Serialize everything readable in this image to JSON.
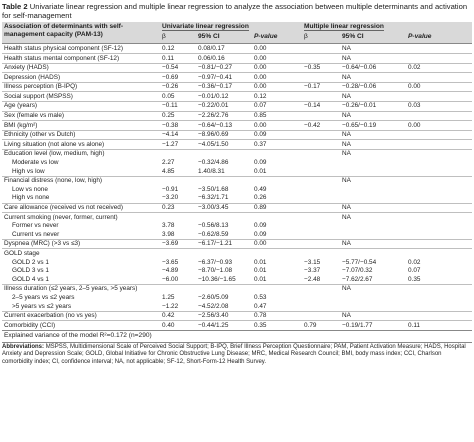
{
  "caption": {
    "label": "Table 2",
    "text": "Univariate linear regression and multiple linear regression to analyze the association between multiple determinants and activation for self-management"
  },
  "header": {
    "determinants": "Association of determinants with self-management capacity (PAM-13)",
    "univariate": "Univariate linear regression",
    "multiple": "Multiple linear regression",
    "beta": "β",
    "ci": "95% CI",
    "pvalue": "P-value"
  },
  "rows": [
    {
      "label": "Health status physical component (SF-12)",
      "indent": false,
      "sep": true,
      "u_beta": "0.12",
      "u_ci": "0.08/0.17",
      "u_p": "0.00",
      "m_beta": "",
      "m_ci": "NA",
      "m_p": ""
    },
    {
      "label": "Health status mental component (SF-12)",
      "indent": false,
      "sep": true,
      "u_beta": "0.11",
      "u_ci": "0.06/0.16",
      "u_p": "0.00",
      "m_beta": "",
      "m_ci": "NA",
      "m_p": ""
    },
    {
      "label": "Anxiety (HADS)",
      "indent": false,
      "sep": true,
      "u_beta": "−0.54",
      "u_ci": "−0.81/−0.27",
      "u_p": "0.00",
      "m_beta": "−0.35",
      "m_ci": "−0.64/−0.06",
      "m_p": "0.02"
    },
    {
      "label": "Depression (HADS)",
      "indent": false,
      "sep": true,
      "u_beta": "−0.69",
      "u_ci": "−0.97/−0.41",
      "u_p": "0.00",
      "m_beta": "",
      "m_ci": "NA",
      "m_p": ""
    },
    {
      "label": "Illness perception (B-IPQ)",
      "indent": false,
      "sep": true,
      "u_beta": "−0.26",
      "u_ci": "−0.36/−0.17",
      "u_p": "0.00",
      "m_beta": "−0.17",
      "m_ci": "−0.28/−0.06",
      "m_p": "0.00"
    },
    {
      "label": "Social support (MSPSS)",
      "indent": false,
      "sep": true,
      "u_beta": "0.05",
      "u_ci": "−0.01/0.12",
      "u_p": "0.12",
      "m_beta": "",
      "m_ci": "NA",
      "m_p": ""
    },
    {
      "label": "Age (years)",
      "indent": false,
      "sep": true,
      "u_beta": "−0.11",
      "u_ci": "−0.22/0.01",
      "u_p": "0.07",
      "m_beta": "−0.14",
      "m_ci": "−0.26/−0.01",
      "m_p": "0.03"
    },
    {
      "label": "Sex (female vs male)",
      "indent": false,
      "sep": true,
      "u_beta": "0.25",
      "u_ci": "−2.26/2.76",
      "u_p": "0.85",
      "m_beta": "",
      "m_ci": "NA",
      "m_p": ""
    },
    {
      "label": "BMI (kg/m²)",
      "indent": false,
      "sep": true,
      "u_beta": "−0.38",
      "u_ci": "−0.64/−0.13",
      "u_p": "0.00",
      "m_beta": "−0.42",
      "m_ci": "−0.65/−0.19",
      "m_p": "0.00"
    },
    {
      "label": "Ethnicity (other vs Dutch)",
      "indent": false,
      "sep": true,
      "u_beta": "−4.14",
      "u_ci": "−8.96/0.69",
      "u_p": "0.09",
      "m_beta": "",
      "m_ci": "NA",
      "m_p": ""
    },
    {
      "label": "Living situation (not alone vs alone)",
      "indent": false,
      "sep": true,
      "u_beta": "−1.27",
      "u_ci": "−4.05/1.50",
      "u_p": "0.37",
      "m_beta": "",
      "m_ci": "NA",
      "m_p": ""
    },
    {
      "label": "Education level (low, medium, high)",
      "indent": false,
      "sep": true,
      "u_beta": "",
      "u_ci": "",
      "u_p": "",
      "m_beta": "",
      "m_ci": "NA",
      "m_p": ""
    },
    {
      "label": "Moderate vs low",
      "indent": true,
      "sep": false,
      "u_beta": "2.27",
      "u_ci": "−0.32/4.86",
      "u_p": "0.09",
      "m_beta": "",
      "m_ci": "",
      "m_p": ""
    },
    {
      "label": "High vs low",
      "indent": true,
      "sep": false,
      "u_beta": "4.85",
      "u_ci": "1.40/8.31",
      "u_p": "0.01",
      "m_beta": "",
      "m_ci": "",
      "m_p": ""
    },
    {
      "label": "Financial distress (none, low, high)",
      "indent": false,
      "sep": true,
      "u_beta": "",
      "u_ci": "",
      "u_p": "",
      "m_beta": "",
      "m_ci": "NA",
      "m_p": ""
    },
    {
      "label": "Low vs none",
      "indent": true,
      "sep": false,
      "u_beta": "−0.91",
      "u_ci": "−3.50/1.68",
      "u_p": "0.49",
      "m_beta": "",
      "m_ci": "",
      "m_p": ""
    },
    {
      "label": "High vs none",
      "indent": true,
      "sep": false,
      "u_beta": "−3.20",
      "u_ci": "−6.32/1.71",
      "u_p": "0.26",
      "m_beta": "",
      "m_ci": "",
      "m_p": ""
    },
    {
      "label": "Care allowance (received vs not received)",
      "indent": false,
      "sep": true,
      "u_beta": "0.23",
      "u_ci": "−3.00/3.45",
      "u_p": "0.89",
      "m_beta": "",
      "m_ci": "NA",
      "m_p": ""
    },
    {
      "label": "Current smoking (never, former, current)",
      "indent": false,
      "sep": true,
      "u_beta": "",
      "u_ci": "",
      "u_p": "",
      "m_beta": "",
      "m_ci": "NA",
      "m_p": ""
    },
    {
      "label": "Former vs never",
      "indent": true,
      "sep": false,
      "u_beta": "3.78",
      "u_ci": "−0.56/8.13",
      "u_p": "0.09",
      "m_beta": "",
      "m_ci": "",
      "m_p": ""
    },
    {
      "label": "Current vs never",
      "indent": true,
      "sep": false,
      "u_beta": "3.98",
      "u_ci": "−0.62/8.59",
      "u_p": "0.09",
      "m_beta": "",
      "m_ci": "",
      "m_p": ""
    },
    {
      "label": "Dyspnea (MRC) (>3 vs ≤3)",
      "indent": false,
      "sep": true,
      "u_beta": "−3.69",
      "u_ci": "−6.17/−1.21",
      "u_p": "0.00",
      "m_beta": "",
      "m_ci": "NA",
      "m_p": ""
    },
    {
      "label": "GOLD stage",
      "indent": false,
      "sep": true,
      "u_beta": "",
      "u_ci": "",
      "u_p": "",
      "m_beta": "",
      "m_ci": "",
      "m_p": ""
    },
    {
      "label": "GOLD 2 vs 1",
      "indent": true,
      "sep": false,
      "u_beta": "−3.65",
      "u_ci": "−6.37/−0.93",
      "u_p": "0.01",
      "m_beta": "−3.15",
      "m_ci": "−5.77/−0.54",
      "m_p": "0.02"
    },
    {
      "label": "GOLD 3 vs 1",
      "indent": true,
      "sep": false,
      "u_beta": "−4.89",
      "u_ci": "−8.70/−1.08",
      "u_p": "0.01",
      "m_beta": "−3.37",
      "m_ci": "−7.07/0.32",
      "m_p": "0.07"
    },
    {
      "label": "GOLD 4 vs 1",
      "indent": true,
      "sep": false,
      "u_beta": "−6.00",
      "u_ci": "−10.36/−1.65",
      "u_p": "0.01",
      "m_beta": "−2.48",
      "m_ci": "−7.62/2.67",
      "m_p": "0.35"
    },
    {
      "label": "Illness duration (≤2 years, 2–5 years, >5 years)",
      "indent": false,
      "sep": true,
      "u_beta": "",
      "u_ci": "",
      "u_p": "",
      "m_beta": "",
      "m_ci": "NA",
      "m_p": ""
    },
    {
      "label": "2–5 years vs ≤2 years",
      "indent": true,
      "sep": false,
      "u_beta": "1.25",
      "u_ci": "−2.60/5.09",
      "u_p": "0.53",
      "m_beta": "",
      "m_ci": "",
      "m_p": ""
    },
    {
      "label": ">5 years vs ≤2 years",
      "indent": true,
      "sep": false,
      "u_beta": "−1.22",
      "u_ci": "−4.52/2.08",
      "u_p": "0.47",
      "m_beta": "",
      "m_ci": "",
      "m_p": ""
    },
    {
      "label": "Current exacerbation (no vs yes)",
      "indent": false,
      "sep": true,
      "u_beta": "0.42",
      "u_ci": "−2.56/3.40",
      "u_p": "0.78",
      "m_beta": "",
      "m_ci": "NA",
      "m_p": ""
    },
    {
      "label": "Comorbidity (CCI)",
      "indent": false,
      "sep": true,
      "u_beta": "0.40",
      "u_ci": "−0.44/1.25",
      "u_p": "0.35",
      "m_beta": "0.79",
      "m_ci": "−0.19/1.77",
      "m_p": "0.11"
    }
  ],
  "explained_variance": "Explained variance of the model R²=0.172 (n=290)",
  "abbreviations": {
    "label": "Abbreviations:",
    "text": "MSPSS, Multidimensional Scale of Perceived Social Support; B-IPQ, Brief Illness Perception Questionnaire; PAM, Patient Activation Measure; HADS, Hospital Anxiety and Depression Scale; GOLD, Global Initiative for Chronic Obstructive Lung Disease; MRC, Medical Research Council; BMI, body mass index; CCI, Charlson comorbidity index; CI, confidence interval; NA, not applicable; SF-12, Short-Form-12 Health Survey."
  }
}
